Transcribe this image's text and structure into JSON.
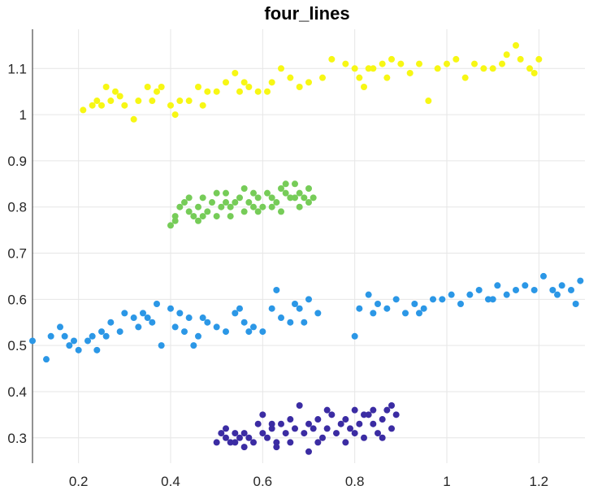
{
  "chart_data": {
    "type": "scatter",
    "title": "four_lines",
    "xlabel": "",
    "ylabel": "",
    "xlim": [
      0.1,
      1.3
    ],
    "ylim": [
      0.245,
      1.185
    ],
    "xticks": [
      0.2,
      0.4,
      0.6,
      0.8,
      1,
      1.2
    ],
    "xtick_labels": [
      "0.2",
      "0.4",
      "0.6",
      "0.8",
      "1",
      "1.2"
    ],
    "yticks": [
      0.3,
      0.4,
      0.5,
      0.6,
      0.7,
      0.8,
      0.9,
      1,
      1.1
    ],
    "ytick_labels": [
      "0.3",
      "0.4",
      "0.5",
      "0.6",
      "0.7",
      "0.8",
      "0.9",
      "1",
      "1.1"
    ],
    "grid": true,
    "legend": "none",
    "series": [
      {
        "color": "#f7f714",
        "points": [
          [
            0.21,
            1.01
          ],
          [
            0.24,
            1.03
          ],
          [
            0.25,
            1.02
          ],
          [
            0.26,
            1.06
          ],
          [
            0.27,
            1.03
          ],
          [
            0.28,
            1.05
          ],
          [
            0.29,
            1.04
          ],
          [
            0.3,
            1.02
          ],
          [
            0.32,
            0.99
          ],
          [
            0.33,
            1.03
          ],
          [
            0.35,
            1.06
          ],
          [
            0.37,
            1.05
          ],
          [
            0.38,
            1.06
          ],
          [
            0.4,
            1.02
          ],
          [
            0.41,
            1.0
          ],
          [
            0.42,
            1.03
          ],
          [
            0.44,
            1.03
          ],
          [
            0.46,
            1.06
          ],
          [
            0.48,
            1.05
          ],
          [
            0.5,
            1.05
          ],
          [
            0.52,
            1.07
          ],
          [
            0.54,
            1.09
          ],
          [
            0.55,
            1.05
          ],
          [
            0.56,
            1.07
          ],
          [
            0.57,
            1.06
          ],
          [
            0.59,
            1.05
          ],
          [
            0.61,
            1.05
          ],
          [
            0.64,
            1.1
          ],
          [
            0.66,
            1.08
          ],
          [
            0.68,
            1.06
          ],
          [
            0.7,
            1.07
          ],
          [
            0.73,
            1.08
          ],
          [
            0.75,
            1.12
          ],
          [
            0.78,
            1.11
          ],
          [
            0.8,
            1.1
          ],
          [
            0.81,
            1.08
          ],
          [
            0.83,
            1.1
          ],
          [
            0.84,
            1.1
          ],
          [
            0.86,
            1.11
          ],
          [
            0.87,
            1.08
          ],
          [
            0.88,
            1.12
          ],
          [
            0.9,
            1.11
          ],
          [
            0.92,
            1.09
          ],
          [
            0.94,
            1.11
          ],
          [
            0.96,
            1.03
          ],
          [
            0.98,
            1.1
          ],
          [
            1.0,
            1.11
          ],
          [
            1.02,
            1.12
          ],
          [
            1.04,
            1.08
          ],
          [
            1.06,
            1.11
          ],
          [
            1.08,
            1.1
          ],
          [
            1.1,
            1.1
          ],
          [
            1.12,
            1.11
          ],
          [
            1.15,
            1.15
          ],
          [
            1.16,
            1.12
          ],
          [
            1.18,
            1.1
          ],
          [
            1.19,
            1.09
          ],
          [
            1.2,
            1.12
          ],
          [
            0.23,
            1.02
          ],
          [
            0.36,
            1.03
          ],
          [
            0.47,
            1.02
          ],
          [
            0.62,
            1.07
          ],
          [
            0.82,
            1.06
          ],
          [
            1.13,
            1.13
          ]
        ]
      },
      {
        "color": "#76cc58",
        "points": [
          [
            0.4,
            0.76
          ],
          [
            0.41,
            0.77
          ],
          [
            0.42,
            0.8
          ],
          [
            0.43,
            0.81
          ],
          [
            0.44,
            0.79
          ],
          [
            0.45,
            0.78
          ],
          [
            0.46,
            0.8
          ],
          [
            0.47,
            0.82
          ],
          [
            0.48,
            0.79
          ],
          [
            0.49,
            0.81
          ],
          [
            0.5,
            0.78
          ],
          [
            0.51,
            0.8
          ],
          [
            0.52,
            0.83
          ],
          [
            0.53,
            0.8
          ],
          [
            0.54,
            0.81
          ],
          [
            0.55,
            0.82
          ],
          [
            0.56,
            0.79
          ],
          [
            0.57,
            0.81
          ],
          [
            0.58,
            0.8
          ],
          [
            0.59,
            0.82
          ],
          [
            0.6,
            0.8
          ],
          [
            0.61,
            0.83
          ],
          [
            0.62,
            0.82
          ],
          [
            0.63,
            0.81
          ],
          [
            0.64,
            0.84
          ],
          [
            0.65,
            0.83
          ],
          [
            0.66,
            0.82
          ],
          [
            0.67,
            0.85
          ],
          [
            0.68,
            0.83
          ],
          [
            0.69,
            0.82
          ],
          [
            0.7,
            0.84
          ],
          [
            0.71,
            0.82
          ],
          [
            0.41,
            0.78
          ],
          [
            0.44,
            0.82
          ],
          [
            0.47,
            0.78
          ],
          [
            0.5,
            0.83
          ],
          [
            0.53,
            0.78
          ],
          [
            0.56,
            0.84
          ],
          [
            0.59,
            0.79
          ],
          [
            0.62,
            0.8
          ],
          [
            0.65,
            0.85
          ],
          [
            0.68,
            0.8
          ],
          [
            0.7,
            0.81
          ],
          [
            0.46,
            0.77
          ],
          [
            0.52,
            0.81
          ],
          [
            0.58,
            0.83
          ],
          [
            0.64,
            0.79
          ],
          [
            0.67,
            0.82
          ]
        ]
      },
      {
        "color": "#2b97e6",
        "points": [
          [
            0.1,
            0.51
          ],
          [
            0.13,
            0.47
          ],
          [
            0.14,
            0.52
          ],
          [
            0.16,
            0.54
          ],
          [
            0.17,
            0.52
          ],
          [
            0.18,
            0.5
          ],
          [
            0.19,
            0.51
          ],
          [
            0.2,
            0.49
          ],
          [
            0.22,
            0.51
          ],
          [
            0.23,
            0.52
          ],
          [
            0.24,
            0.49
          ],
          [
            0.25,
            0.53
          ],
          [
            0.27,
            0.55
          ],
          [
            0.29,
            0.53
          ],
          [
            0.3,
            0.57
          ],
          [
            0.32,
            0.56
          ],
          [
            0.33,
            0.54
          ],
          [
            0.35,
            0.56
          ],
          [
            0.36,
            0.55
          ],
          [
            0.37,
            0.59
          ],
          [
            0.38,
            0.5
          ],
          [
            0.4,
            0.58
          ],
          [
            0.41,
            0.54
          ],
          [
            0.42,
            0.57
          ],
          [
            0.43,
            0.53
          ],
          [
            0.44,
            0.56
          ],
          [
            0.45,
            0.5
          ],
          [
            0.47,
            0.56
          ],
          [
            0.48,
            0.55
          ],
          [
            0.5,
            0.54
          ],
          [
            0.52,
            0.53
          ],
          [
            0.54,
            0.57
          ],
          [
            0.56,
            0.55
          ],
          [
            0.57,
            0.53
          ],
          [
            0.58,
            0.54
          ],
          [
            0.6,
            0.53
          ],
          [
            0.62,
            0.58
          ],
          [
            0.63,
            0.62
          ],
          [
            0.64,
            0.56
          ],
          [
            0.66,
            0.55
          ],
          [
            0.68,
            0.58
          ],
          [
            0.69,
            0.55
          ],
          [
            0.7,
            0.6
          ],
          [
            0.72,
            0.57
          ],
          [
            0.8,
            0.52
          ],
          [
            0.81,
            0.58
          ],
          [
            0.83,
            0.61
          ],
          [
            0.85,
            0.59
          ],
          [
            0.87,
            0.58
          ],
          [
            0.89,
            0.6
          ],
          [
            0.91,
            0.57
          ],
          [
            0.93,
            0.59
          ],
          [
            0.95,
            0.58
          ],
          [
            0.97,
            0.6
          ],
          [
            0.99,
            0.6
          ],
          [
            1.01,
            0.61
          ],
          [
            1.03,
            0.59
          ],
          [
            1.05,
            0.61
          ],
          [
            1.07,
            0.62
          ],
          [
            1.09,
            0.6
          ],
          [
            1.11,
            0.63
          ],
          [
            1.13,
            0.61
          ],
          [
            1.15,
            0.62
          ],
          [
            1.17,
            0.63
          ],
          [
            1.19,
            0.62
          ],
          [
            1.21,
            0.65
          ],
          [
            1.23,
            0.62
          ],
          [
            1.25,
            0.63
          ],
          [
            1.27,
            0.62
          ],
          [
            1.28,
            0.59
          ],
          [
            1.29,
            0.64
          ],
          [
            0.26,
            0.52
          ],
          [
            0.34,
            0.57
          ],
          [
            0.46,
            0.52
          ],
          [
            0.55,
            0.58
          ],
          [
            0.67,
            0.59
          ],
          [
            0.84,
            0.57
          ],
          [
            0.94,
            0.57
          ],
          [
            1.1,
            0.6
          ],
          [
            1.24,
            0.61
          ]
        ]
      },
      {
        "color": "#3b2ca3",
        "points": [
          [
            0.5,
            0.29
          ],
          [
            0.51,
            0.31
          ],
          [
            0.52,
            0.3
          ],
          [
            0.53,
            0.29
          ],
          [
            0.54,
            0.29
          ],
          [
            0.55,
            0.3
          ],
          [
            0.56,
            0.31
          ],
          [
            0.57,
            0.3
          ],
          [
            0.58,
            0.29
          ],
          [
            0.59,
            0.33
          ],
          [
            0.6,
            0.31
          ],
          [
            0.61,
            0.3
          ],
          [
            0.62,
            0.32
          ],
          [
            0.63,
            0.29
          ],
          [
            0.64,
            0.33
          ],
          [
            0.65,
            0.31
          ],
          [
            0.66,
            0.34
          ],
          [
            0.67,
            0.32
          ],
          [
            0.68,
            0.37
          ],
          [
            0.69,
            0.31
          ],
          [
            0.7,
            0.33
          ],
          [
            0.71,
            0.32
          ],
          [
            0.72,
            0.34
          ],
          [
            0.73,
            0.3
          ],
          [
            0.74,
            0.32
          ],
          [
            0.75,
            0.35
          ],
          [
            0.76,
            0.31
          ],
          [
            0.77,
            0.33
          ],
          [
            0.78,
            0.34
          ],
          [
            0.79,
            0.32
          ],
          [
            0.8,
            0.36
          ],
          [
            0.81,
            0.33
          ],
          [
            0.82,
            0.3
          ],
          [
            0.83,
            0.35
          ],
          [
            0.84,
            0.33
          ],
          [
            0.85,
            0.31
          ],
          [
            0.86,
            0.34
          ],
          [
            0.87,
            0.36
          ],
          [
            0.88,
            0.32
          ],
          [
            0.89,
            0.35
          ],
          [
            0.52,
            0.32
          ],
          [
            0.56,
            0.28
          ],
          [
            0.6,
            0.35
          ],
          [
            0.63,
            0.28
          ],
          [
            0.66,
            0.29
          ],
          [
            0.7,
            0.27
          ],
          [
            0.74,
            0.36
          ],
          [
            0.78,
            0.29
          ],
          [
            0.82,
            0.35
          ],
          [
            0.86,
            0.3
          ],
          [
            0.88,
            0.37
          ],
          [
            0.54,
            0.31
          ],
          [
            0.62,
            0.33
          ],
          [
            0.72,
            0.29
          ],
          [
            0.8,
            0.31
          ],
          [
            0.84,
            0.36
          ]
        ]
      }
    ]
  }
}
